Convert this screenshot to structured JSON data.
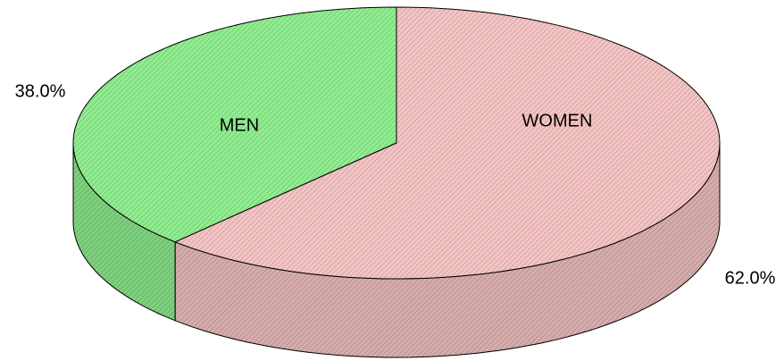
{
  "chart_data": {
    "type": "pie",
    "three_d": true,
    "categories": [
      "MEN",
      "WOMEN"
    ],
    "values": [
      38,
      62
    ],
    "value_labels": [
      "38.0%",
      "62.0%"
    ],
    "colors": [
      "#90ee90",
      "#f5c4c4"
    ]
  }
}
